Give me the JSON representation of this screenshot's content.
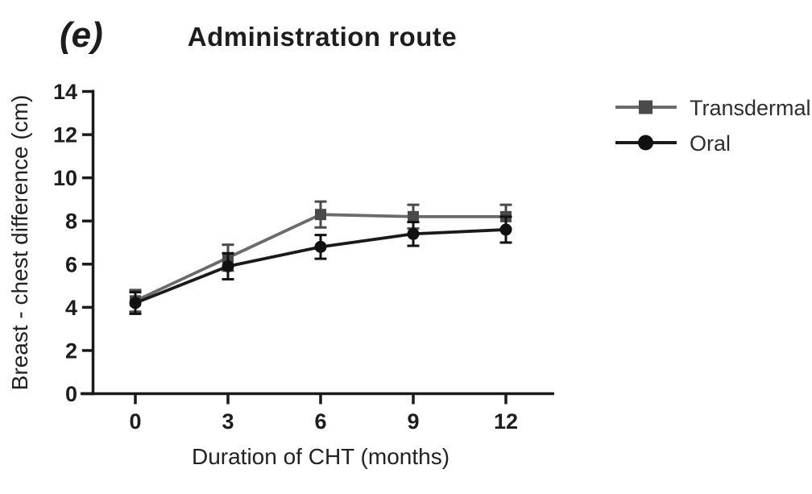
{
  "figure": {
    "panel_label": "(e)"
  },
  "chart_data": {
    "type": "line",
    "title": "Administration route",
    "xlabel": "Duration of CHT (months)",
    "ylabel": "Breast - chest difference (cm)",
    "x": [
      0,
      3,
      6,
      9,
      12
    ],
    "ylim": [
      0,
      14
    ],
    "yticks": [
      0,
      2,
      4,
      6,
      8,
      10,
      12,
      14
    ],
    "grid": false,
    "legend_position": "right",
    "error_bars": true,
    "series": [
      {
        "name": "Transdermal",
        "marker": "square",
        "line_color": "#6b6b6b",
        "marker_color": "#4a4a4a",
        "values": [
          4.3,
          6.3,
          8.3,
          8.2,
          8.2
        ],
        "errors": [
          0.5,
          0.6,
          0.6,
          0.55,
          0.55
        ]
      },
      {
        "name": "Oral",
        "marker": "circle",
        "line_color": "#1a1a1a",
        "marker_color": "#111111",
        "values": [
          4.2,
          5.9,
          6.8,
          7.4,
          7.6
        ],
        "errors": [
          0.5,
          0.6,
          0.55,
          0.55,
          0.6
        ]
      }
    ]
  }
}
